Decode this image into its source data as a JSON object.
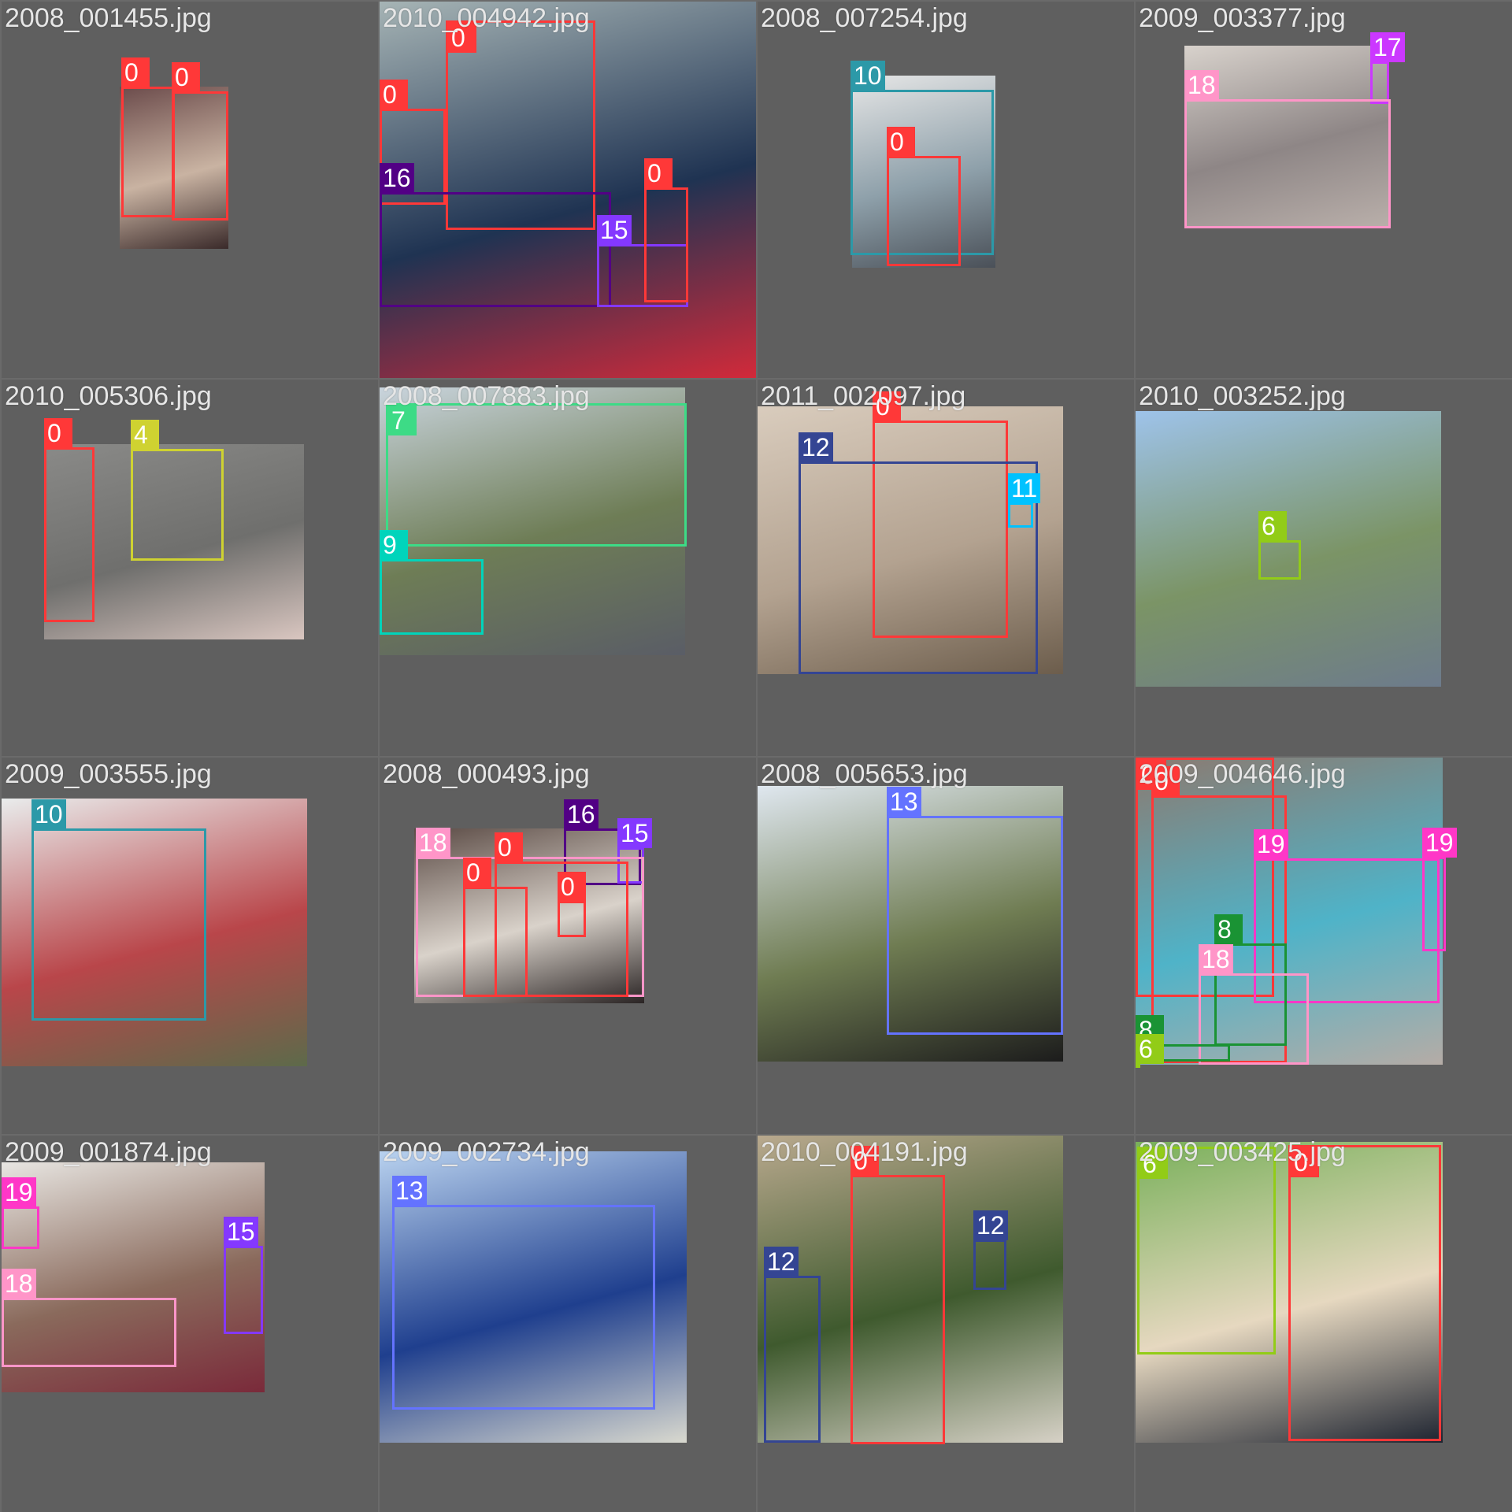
{
  "class_colors": {
    "0": "#ff3838",
    "4": "#cfd231",
    "6": "#92cc17",
    "7": "#3ddb86",
    "8": "#1a9334",
    "9": "#00d4bb",
    "10": "#2c99a8",
    "11": "#00c2ff",
    "12": "#344593",
    "13": "#6473ff",
    "15": "#8438ff",
    "16": "#520085",
    "17": "#cb38ff",
    "18": "#ff95c8",
    "19": "#ff37c7"
  },
  "tiles": [
    {
      "filename": "2008_001455.jpg",
      "photo_colors": [
        "#6b4b4b",
        "#c9b3a2",
        "#3a2a2a"
      ],
      "boxes": [
        {
          "label": "0"
        },
        {
          "label": "0"
        }
      ]
    },
    {
      "filename": "2010_004942.jpg",
      "photo_colors": [
        "#a6b4b5",
        "#1f3352",
        "#d22a3a"
      ],
      "boxes": [
        {
          "label": "0"
        },
        {
          "label": "0"
        },
        {
          "label": "16"
        },
        {
          "label": "15"
        },
        {
          "label": "0"
        }
      ]
    },
    {
      "filename": "2008_007254.jpg",
      "photo_colors": [
        "#e6e6e6",
        "#8ea0aa",
        "#4a5058"
      ],
      "boxes": [
        {
          "label": "10"
        },
        {
          "label": "0"
        }
      ]
    },
    {
      "filename": "2009_003377.jpg",
      "photo_colors": [
        "#d8d2cc",
        "#8e8686",
        "#b9afaa"
      ],
      "boxes": [
        {
          "label": "17"
        },
        {
          "label": "18"
        }
      ]
    },
    {
      "filename": "2010_005306.jpg",
      "photo_colors": [
        "#8a8a88",
        "#6f6f6d",
        "#d9c6c0"
      ],
      "boxes": [
        {
          "label": "0"
        },
        {
          "label": "4"
        }
      ]
    },
    {
      "filename": "2008_007883.jpg",
      "photo_colors": [
        "#c9d4dd",
        "#6e7d56",
        "#5a5d66"
      ],
      "boxes": [
        {
          "label": "7"
        },
        {
          "label": "9"
        }
      ]
    },
    {
      "filename": "2011_002097.jpg",
      "photo_colors": [
        "#d9ccbd",
        "#b3a290",
        "#6c5d4c"
      ],
      "boxes": [
        {
          "label": "0"
        },
        {
          "label": "12"
        },
        {
          "label": "11"
        }
      ]
    },
    {
      "filename": "2010_003252.jpg",
      "photo_colors": [
        "#9ec3ea",
        "#7b9466",
        "#6d7b8c"
      ],
      "boxes": [
        {
          "label": "6"
        }
      ]
    },
    {
      "filename": "2009_003555.jpg",
      "photo_colors": [
        "#e9ecec",
        "#b9464a",
        "#5d6a4a"
      ],
      "boxes": [
        {
          "label": "10"
        }
      ]
    },
    {
      "filename": "2008_000493.jpg",
      "photo_colors": [
        "#5b4b45",
        "#d9d2ca",
        "#2a2424"
      ],
      "boxes": [
        {
          "label": "16"
        },
        {
          "label": "15"
        },
        {
          "label": "18"
        },
        {
          "label": "0"
        },
        {
          "label": "0"
        },
        {
          "label": "0"
        }
      ]
    },
    {
      "filename": "2008_005653.jpg",
      "photo_colors": [
        "#dfe7ef",
        "#6f7c52",
        "#1c1c1c"
      ],
      "boxes": [
        {
          "label": "13"
        }
      ]
    },
    {
      "filename": "2009_004646.jpg",
      "photo_colors": [
        "#8c7a70",
        "#4fb3c8",
        "#b5aca6"
      ],
      "boxes": [
        {
          "label": "0"
        },
        {
          "label": "0"
        },
        {
          "label": "19"
        },
        {
          "label": "19"
        },
        {
          "label": "8"
        },
        {
          "label": "18"
        },
        {
          "label": "8"
        },
        {
          "label": "6"
        }
      ]
    },
    {
      "filename": "2009_001874.jpg",
      "photo_colors": [
        "#e8e6e2",
        "#8a6a5c",
        "#7a2a3a"
      ],
      "boxes": [
        {
          "label": "19"
        },
        {
          "label": "15"
        },
        {
          "label": "18"
        }
      ]
    },
    {
      "filename": "2009_002734.jpg",
      "photo_colors": [
        "#b9d2ef",
        "#1f3f8e",
        "#d9d9cf"
      ],
      "boxes": [
        {
          "label": "13"
        }
      ]
    },
    {
      "filename": "2010_004191.jpg",
      "photo_colors": [
        "#b9a98e",
        "#3f5a2e",
        "#d6d1c6"
      ],
      "boxes": [
        {
          "label": "0"
        },
        {
          "label": "12"
        },
        {
          "label": "12"
        }
      ]
    },
    {
      "filename": "2009_003425.jpg",
      "photo_colors": [
        "#79b05a",
        "#e6d8c0",
        "#1d2330"
      ],
      "boxes": [
        {
          "label": "6"
        },
        {
          "label": "0"
        }
      ]
    }
  ]
}
